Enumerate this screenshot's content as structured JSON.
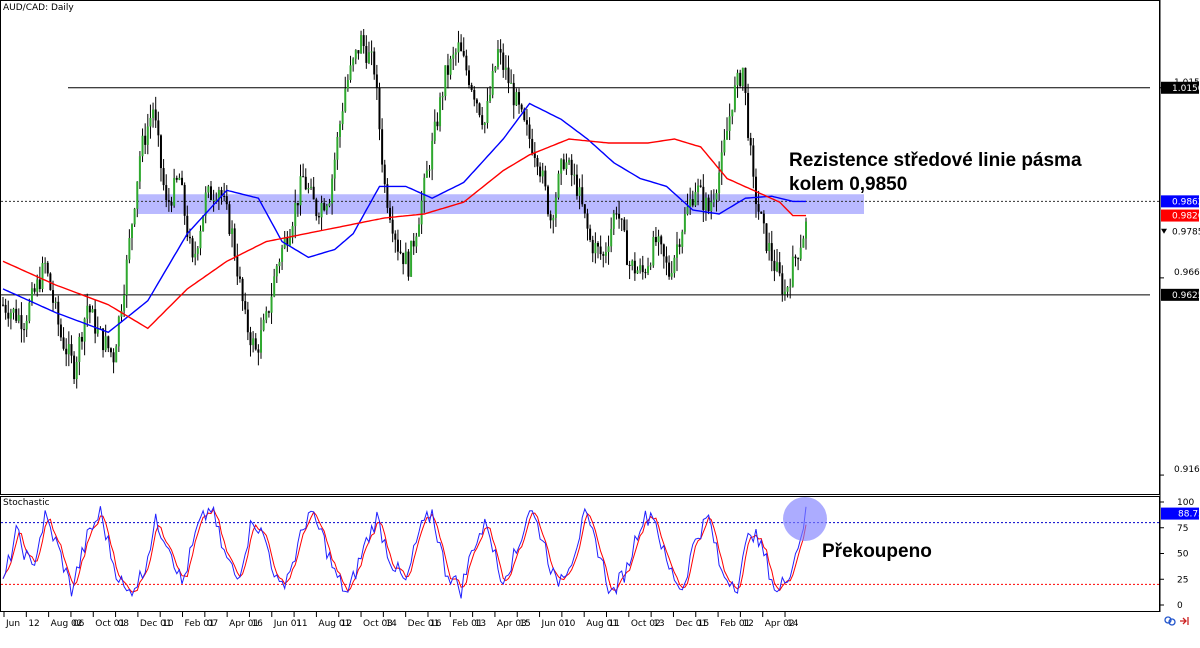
{
  "chart_data": {
    "type": "candlestick",
    "symbol_label": "AUD/CAD: Daily",
    "indicator_label": "Stochastic",
    "price_axis": {
      "ylim": [
        0.912,
        1.037
      ],
      "ticks": [
        {
          "value": 1.015,
          "label": "1.0150"
        },
        {
          "value": 0.9668,
          "label": "0.9668"
        },
        {
          "value": 0.9168,
          "label": "0.9168"
        }
      ]
    },
    "price_markers": [
      {
        "label": "1.0150",
        "value": 1.015,
        "color": "#000000"
      },
      {
        "label": "0.9862",
        "value": 0.9862,
        "color": "#0000ff"
      },
      {
        "label": "0.9826",
        "value": 0.9826,
        "color": "#ff0000"
      },
      {
        "label": "0.9785",
        "value": 0.9785,
        "color": "#000000"
      },
      {
        "label": "0.9625",
        "value": 0.9625,
        "color": "#000000"
      }
    ],
    "horizontal_lines": [
      {
        "value": 1.015,
        "style": "solid"
      },
      {
        "value": 0.9862,
        "style": "dotted"
      },
      {
        "value": 0.9625,
        "style": "solid"
      }
    ],
    "resistance_zone": {
      "from": 0.983,
      "to": 0.988,
      "color": "#8080ff"
    },
    "x_ticks": [
      "Jun",
      "12",
      "Aug 02",
      "06",
      "Oct 01",
      "08",
      "Dec 01",
      "10",
      "Feb 01",
      "07",
      "Apr 01",
      "16",
      "Jun 01",
      "11",
      "Aug 01",
      "12",
      "Oct 03",
      "14",
      "Dec 01",
      "16",
      "Feb 01",
      "13",
      "Apr 03",
      "15",
      "Jun 01",
      "10",
      "Aug 01",
      "11",
      "Oct 02",
      "13",
      "Dec 01",
      "15",
      "Feb 01",
      "12",
      "Apr 02",
      "14"
    ],
    "price_path": [
      {
        "i": 0,
        "close": 0.96
      },
      {
        "i": 8,
        "close": 0.956
      },
      {
        "i": 16,
        "close": 0.97
      },
      {
        "i": 22,
        "close": 0.952
      },
      {
        "i": 27,
        "close": 0.944
      },
      {
        "i": 32,
        "close": 0.96
      },
      {
        "i": 36,
        "close": 0.953
      },
      {
        "i": 42,
        "close": 0.947
      },
      {
        "i": 47,
        "close": 0.97
      },
      {
        "i": 52,
        "close": 0.998
      },
      {
        "i": 57,
        "close": 1.01
      },
      {
        "i": 62,
        "close": 0.985
      },
      {
        "i": 67,
        "close": 0.992
      },
      {
        "i": 72,
        "close": 0.97
      },
      {
        "i": 77,
        "close": 0.987
      },
      {
        "i": 82,
        "close": 0.99
      },
      {
        "i": 87,
        "close": 0.978
      },
      {
        "i": 92,
        "close": 0.956
      },
      {
        "i": 96,
        "close": 0.948
      },
      {
        "i": 100,
        "close": 0.956
      },
      {
        "i": 104,
        "close": 0.97
      },
      {
        "i": 109,
        "close": 0.98
      },
      {
        "i": 114,
        "close": 0.992
      },
      {
        "i": 119,
        "close": 0.984
      },
      {
        "i": 124,
        "close": 0.988
      },
      {
        "i": 130,
        "close": 1.015
      },
      {
        "i": 136,
        "close": 1.027
      },
      {
        "i": 141,
        "close": 1.02
      },
      {
        "i": 145,
        "close": 0.99
      },
      {
        "i": 150,
        "close": 0.975
      },
      {
        "i": 154,
        "close": 0.97
      },
      {
        "i": 159,
        "close": 0.986
      },
      {
        "i": 163,
        "close": 1.0
      },
      {
        "i": 168,
        "close": 1.018
      },
      {
        "i": 173,
        "close": 1.025
      },
      {
        "i": 178,
        "close": 1.016
      },
      {
        "i": 183,
        "close": 1.006
      },
      {
        "i": 188,
        "close": 1.024
      },
      {
        "i": 193,
        "close": 1.015
      },
      {
        "i": 198,
        "close": 1.005
      },
      {
        "i": 203,
        "close": 0.998
      },
      {
        "i": 208,
        "close": 0.982
      },
      {
        "i": 213,
        "close": 0.997
      },
      {
        "i": 218,
        "close": 0.99
      },
      {
        "i": 223,
        "close": 0.976
      },
      {
        "i": 228,
        "close": 0.972
      },
      {
        "i": 233,
        "close": 0.985
      },
      {
        "i": 238,
        "close": 0.97
      },
      {
        "i": 243,
        "close": 0.968
      },
      {
        "i": 248,
        "close": 0.976
      },
      {
        "i": 253,
        "close": 0.968
      },
      {
        "i": 258,
        "close": 0.98
      },
      {
        "i": 263,
        "close": 0.99
      },
      {
        "i": 268,
        "close": 0.984
      },
      {
        "i": 273,
        "close": 0.996
      },
      {
        "i": 277,
        "close": 1.012
      },
      {
        "i": 281,
        "close": 1.02
      },
      {
        "i": 285,
        "close": 0.99
      },
      {
        "i": 289,
        "close": 0.978
      },
      {
        "i": 293,
        "close": 0.97
      },
      {
        "i": 297,
        "close": 0.963
      },
      {
        "i": 301,
        "close": 0.972
      },
      {
        "i": 305,
        "close": 0.98
      }
    ],
    "series": [
      {
        "name": "",
        "color": "#0000ff",
        "values": [
          {
            "i": 0,
            "v": 0.964
          },
          {
            "i": 20,
            "v": 0.958
          },
          {
            "i": 40,
            "v": 0.953
          },
          {
            "i": 55,
            "v": 0.961
          },
          {
            "i": 70,
            "v": 0.978
          },
          {
            "i": 85,
            "v": 0.989
          },
          {
            "i": 97,
            "v": 0.987
          },
          {
            "i": 106,
            "v": 0.976
          },
          {
            "i": 116,
            "v": 0.972
          },
          {
            "i": 126,
            "v": 0.974
          },
          {
            "i": 133,
            "v": 0.978
          },
          {
            "i": 143,
            "v": 0.99
          },
          {
            "i": 153,
            "v": 0.99
          },
          {
            "i": 163,
            "v": 0.987
          },
          {
            "i": 175,
            "v": 0.991
          },
          {
            "i": 190,
            "v": 1.002
          },
          {
            "i": 200,
            "v": 1.011
          },
          {
            "i": 212,
            "v": 1.007
          },
          {
            "i": 222,
            "v": 1.002
          },
          {
            "i": 232,
            "v": 0.996
          },
          {
            "i": 242,
            "v": 0.992
          },
          {
            "i": 252,
            "v": 0.99
          },
          {
            "i": 262,
            "v": 0.984
          },
          {
            "i": 272,
            "v": 0.983
          },
          {
            "i": 282,
            "v": 0.987
          },
          {
            "i": 292,
            "v": 0.9875
          },
          {
            "i": 300,
            "v": 0.9862
          }
        ]
      },
      {
        "name": "",
        "color": "#ff0000",
        "values": [
          {
            "i": 0,
            "v": 0.971
          },
          {
            "i": 20,
            "v": 0.965
          },
          {
            "i": 40,
            "v": 0.96
          },
          {
            "i": 55,
            "v": 0.954
          },
          {
            "i": 70,
            "v": 0.964
          },
          {
            "i": 85,
            "v": 0.971
          },
          {
            "i": 100,
            "v": 0.976
          },
          {
            "i": 115,
            "v": 0.978
          },
          {
            "i": 130,
            "v": 0.98
          },
          {
            "i": 145,
            "v": 0.982
          },
          {
            "i": 160,
            "v": 0.983
          },
          {
            "i": 175,
            "v": 0.986
          },
          {
            "i": 190,
            "v": 0.994
          },
          {
            "i": 200,
            "v": 0.998
          },
          {
            "i": 215,
            "v": 1.002
          },
          {
            "i": 230,
            "v": 1.001
          },
          {
            "i": 245,
            "v": 1.001
          },
          {
            "i": 255,
            "v": 1.002
          },
          {
            "i": 265,
            "v": 1.0
          },
          {
            "i": 275,
            "v": 0.992
          },
          {
            "i": 285,
            "v": 0.989
          },
          {
            "i": 295,
            "v": 0.986
          },
          {
            "i": 300,
            "v": 0.9826
          }
        ]
      }
    ],
    "stochastic": {
      "ylim": [
        0,
        100
      ],
      "ticks": [
        100,
        75,
        50,
        25,
        0
      ],
      "levels": [
        80,
        20
      ],
      "current_label": "88.75",
      "current_value": 88.75,
      "k_values": [
        20,
        70,
        35,
        85,
        55,
        15,
        65,
        90,
        40,
        10,
        30,
        80,
        60,
        20,
        75,
        95,
        50,
        25,
        85,
        60,
        15,
        40,
        90,
        70,
        30,
        10,
        55,
        85,
        45,
        20,
        70,
        90,
        35,
        15,
        60,
        80,
        25,
        50,
        95,
        65,
        20,
        45,
        85,
        55,
        10,
        35,
        80,
        90,
        40,
        15,
        65,
        85,
        30,
        20,
        75,
        50,
        10,
        40,
        88
      ]
    },
    "annotations": [
      {
        "text": "Rezistence středové linie pásma",
        "role": "resistance-note-line-1"
      },
      {
        "text": "kolem 0,9850",
        "role": "resistance-note-line-2"
      },
      {
        "text": "Překoupeno",
        "role": "overbought-note"
      }
    ]
  }
}
